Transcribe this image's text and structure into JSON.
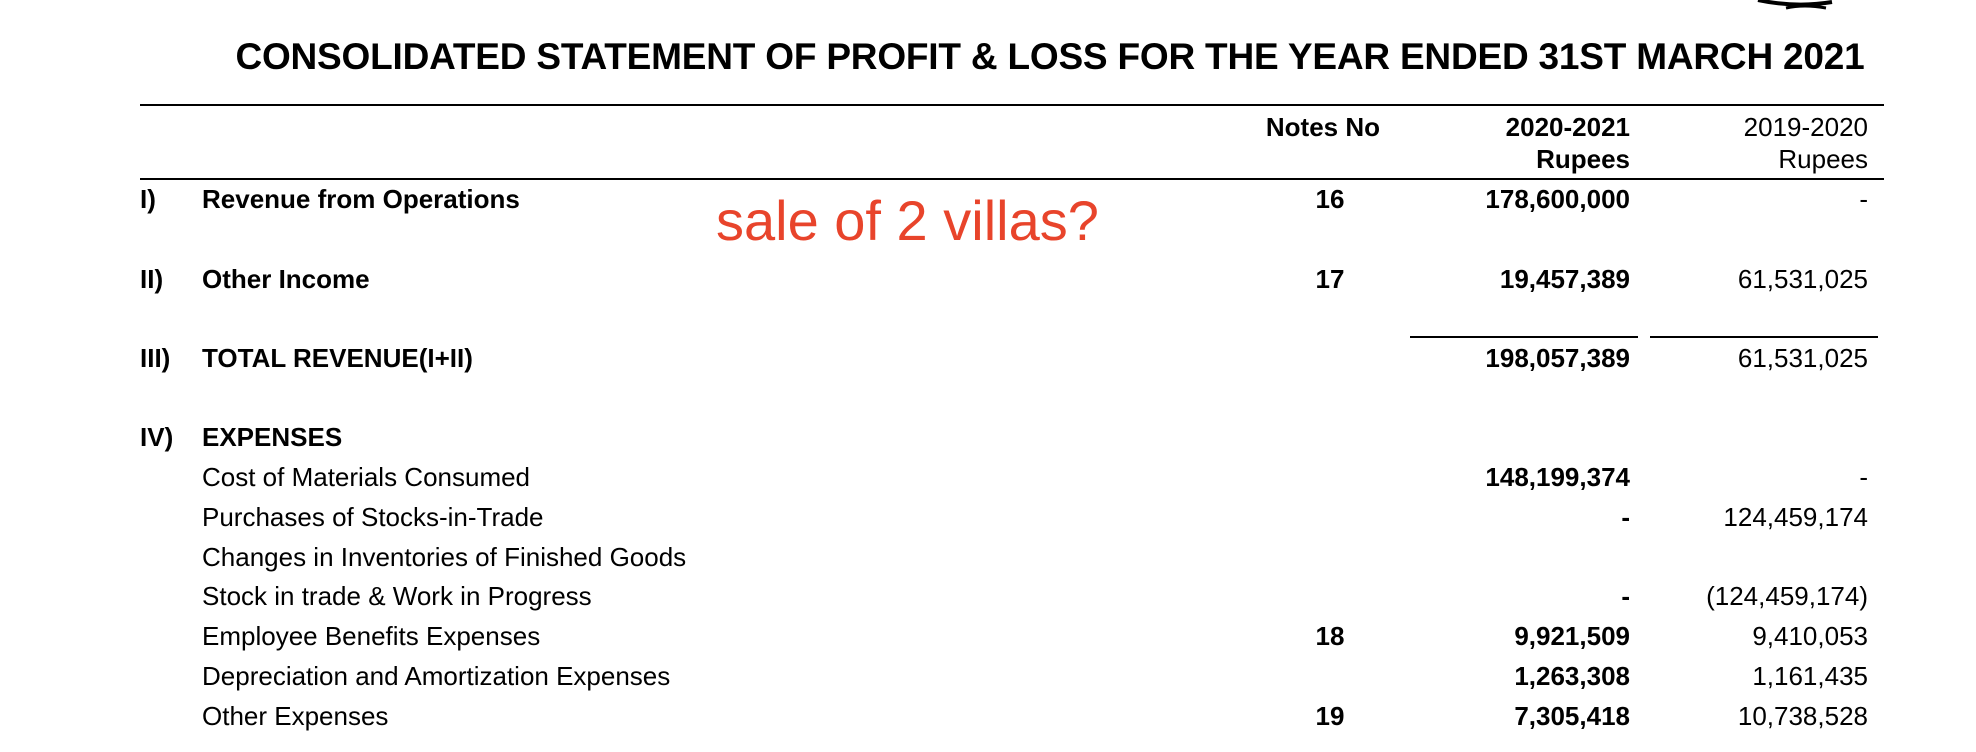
{
  "document": {
    "title": "CONSOLIDATED STATEMENT OF PROFIT & LOSS FOR THE YEAR ENDED 31ST MARCH 2021",
    "headers": {
      "notes": "Notes No",
      "current_year": "2020-2021",
      "current_unit": "Rupees",
      "previous_year": "2019-2020",
      "previous_unit": "Rupees"
    },
    "annotation": "sale of 2 villas?",
    "rows": [
      {
        "num": "I)",
        "label": "Revenue from Operations",
        "note": "16",
        "current": "178,600,000",
        "previous": "-"
      },
      {
        "num": "II)",
        "label": "Other Income",
        "note": "17",
        "current": "19,457,389",
        "previous": "61,531,025"
      },
      {
        "num": "III)",
        "label": "TOTAL REVENUE(I+II)",
        "note": "",
        "current": "198,057,389",
        "previous": "61,531,025"
      },
      {
        "num": "IV)",
        "label": "EXPENSES",
        "note": "",
        "current": "",
        "previous": ""
      },
      {
        "num": "",
        "label": "Cost of Materials Consumed",
        "note": "",
        "current": "148,199,374",
        "previous": "-"
      },
      {
        "num": "",
        "label": "Purchases of Stocks-in-Trade",
        "note": "",
        "current": "-",
        "previous": "124,459,174"
      },
      {
        "num": "",
        "label": "Changes in Inventories of Finished Goods",
        "note": "",
        "current": "",
        "previous": ""
      },
      {
        "num": "",
        "label": "Stock in trade & Work in Progress",
        "note": "",
        "current": "-",
        "previous": "(124,459,174)"
      },
      {
        "num": "",
        "label": "Employee Benefits Expenses",
        "note": "18",
        "current": "9,921,509",
        "previous": "9,410,053"
      },
      {
        "num": "",
        "label": "Depreciation and Amortization Expenses",
        "note": "",
        "current": "1,263,308",
        "previous": "1,161,435"
      },
      {
        "num": "",
        "label": "Other Expenses",
        "note": "19",
        "current": "7,305,418",
        "previous": "10,738,528"
      }
    ]
  }
}
